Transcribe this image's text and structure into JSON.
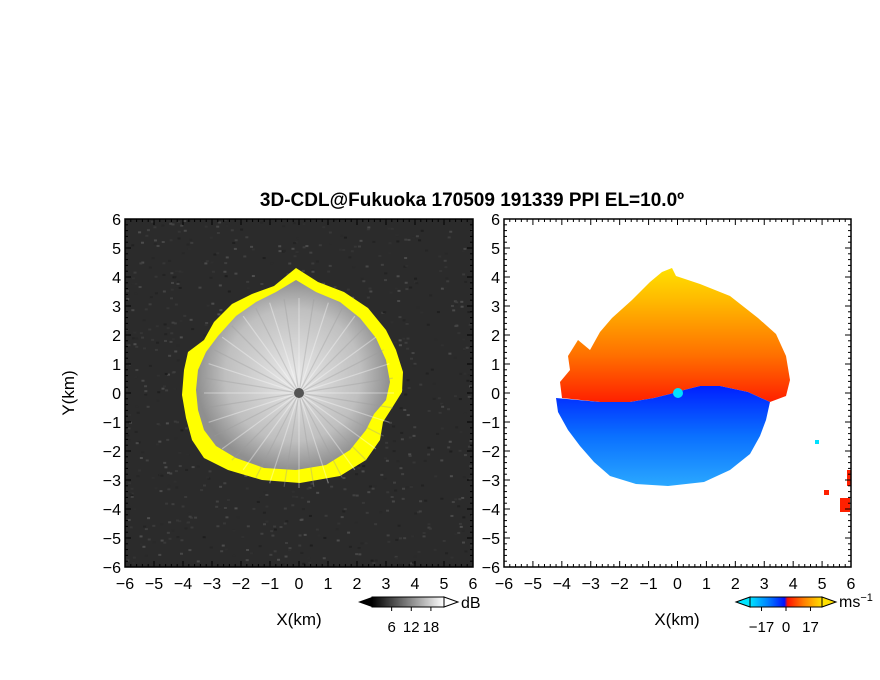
{
  "title": "3D-CDL@Fukuoka 170509 191339 PPI EL=10.0º",
  "chart_data": [
    {
      "type": "heatmap",
      "panel": "reflectivity",
      "xlabel": "X(km)",
      "ylabel": "Y(km)",
      "xlim": [
        -6,
        6
      ],
      "ylim": [
        -6,
        6
      ],
      "x_ticks": [
        "-6",
        "-5",
        "-4",
        "-3",
        "-2",
        "-1",
        "0",
        "1",
        "2",
        "3",
        "4",
        "5",
        "6"
      ],
      "y_ticks": [
        "-6",
        "-5",
        "-4",
        "-3",
        "-2",
        "-1",
        "0",
        "1",
        "2",
        "3",
        "4",
        "5",
        "6"
      ],
      "background_color": "#2b2b2b",
      "echo_color": "#d0d0d0",
      "rim_color": "#ffff00",
      "radar_marker_color": "#555555",
      "echo_radius_km": 3.6,
      "colorbar": {
        "unit": "dB",
        "ticks": [
          "6",
          "12",
          "18"
        ],
        "tick_values": [
          6,
          12,
          18
        ],
        "range": [
          0,
          22
        ],
        "colors": [
          "#000000",
          "#ffffff"
        ]
      }
    },
    {
      "type": "heatmap",
      "panel": "doppler-velocity",
      "xlabel": "X(km)",
      "ylabel": "",
      "xlim": [
        -6,
        6
      ],
      "ylim": [
        -6,
        6
      ],
      "x_ticks": [
        "-6",
        "-5",
        "-4",
        "-3",
        "-2",
        "-1",
        "0",
        "1",
        "2",
        "3",
        "4",
        "5",
        "6"
      ],
      "y_ticks": [
        "-6",
        "-5",
        "-4",
        "-3",
        "-2",
        "-1",
        "0",
        "1",
        "2",
        "3",
        "4",
        "5",
        "6"
      ],
      "background_color": "#ffffff",
      "northern_half_colors": [
        "#ff2000",
        "#ffd000"
      ],
      "southern_half_colors": [
        "#0030ff",
        "#1a9fff"
      ],
      "radar_marker_color": "#00e0ff",
      "echo_radius_km": 3.4,
      "colorbar": {
        "unit": "ms",
        "unit_exponent": "−1",
        "ticks": [
          "−17",
          "0",
          "17"
        ],
        "tick_values": [
          -17,
          0,
          17
        ],
        "range": [
          -25,
          25
        ],
        "colors": [
          "#00e5ff",
          "#0080ff",
          "#0010ff",
          "#ff1000",
          "#ff8000",
          "#ffe000"
        ]
      }
    }
  ]
}
